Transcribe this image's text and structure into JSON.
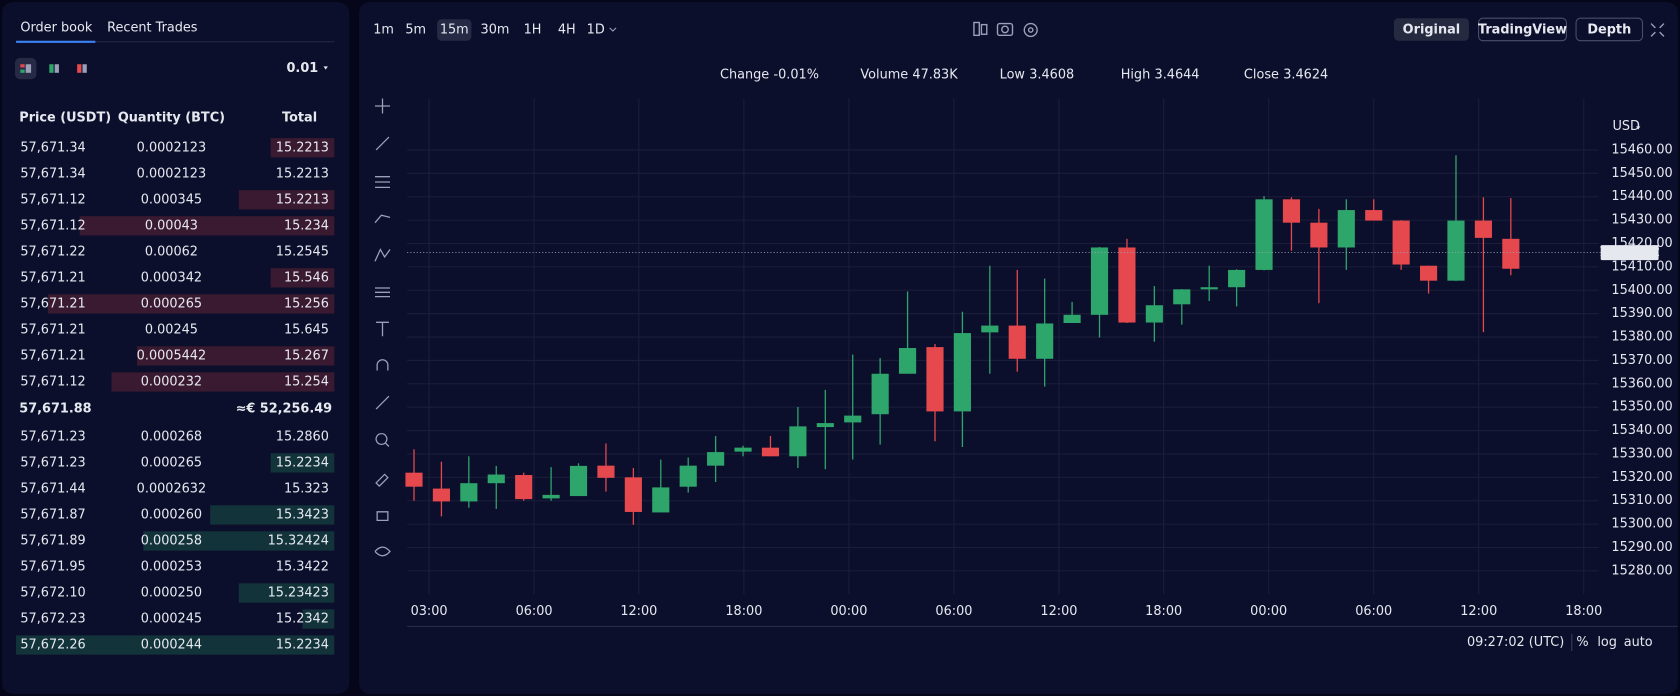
{
  "order_book": {
    "tabs": [
      "Order book",
      "Recent Trades"
    ],
    "size": "0.01",
    "headers": [
      "Price (USDT)",
      "Quantity (BTC)",
      "Total"
    ],
    "asks": [
      {
        "price": "57,671.34",
        "quantity": "0.0002123",
        "total": "15.2213",
        "depth": 20
      },
      {
        "price": "57,671.34",
        "quantity": "0.0002123",
        "total": "15.2213",
        "depth": 0
      },
      {
        "price": "57,671.12",
        "quantity": "0.000345",
        "total": "15.2213",
        "depth": 30
      },
      {
        "price": "57,671.12",
        "quantity": "0.00043",
        "total": "15.234",
        "depth": 80
      },
      {
        "price": "57,671.22",
        "quantity": "0.00062",
        "total": "15.2545",
        "depth": 0
      },
      {
        "price": "57,671.21",
        "quantity": "0.000342",
        "total": "15.546",
        "depth": 20
      },
      {
        "price": "57,671.21",
        "quantity": "0.000265",
        "total": "15.256",
        "depth": 90
      },
      {
        "price": "57,671.21",
        "quantity": "0.00245",
        "total": "15.645",
        "depth": 0
      },
      {
        "price": "57,671.21",
        "quantity": "0.0005442",
        "total": "15.267",
        "depth": 62
      },
      {
        "price": "57,671.12",
        "quantity": "0.000232",
        "total": "15.254",
        "depth": 70
      }
    ],
    "mid_price": "57,671.88",
    "mid_value": "≈€ 52,256.49",
    "bids": [
      {
        "price": "57,671.23",
        "quantity": "0.000268",
        "total": "15.2860",
        "depth": 0
      },
      {
        "price": "57,671.23",
        "quantity": "0.000265",
        "total": "15.2234",
        "depth": 20
      },
      {
        "price": "57,671.44",
        "quantity": "0.0002632",
        "total": "15.323",
        "depth": 0
      },
      {
        "price": "57,671.87",
        "quantity": "0.000260",
        "total": "15.3423",
        "depth": 39
      },
      {
        "price": "57,671.89",
        "quantity": "0.000258",
        "total": "15.32424",
        "depth": 60
      },
      {
        "price": "57,671.95",
        "quantity": "0.000253",
        "total": "15.3422",
        "depth": 0
      },
      {
        "price": "57,672.10",
        "quantity": "0.000250",
        "total": "15.23423",
        "depth": 30
      },
      {
        "price": "57,672.23",
        "quantity": "0.000245",
        "total": "15.2342",
        "depth": 10
      },
      {
        "price": "57,672.26",
        "quantity": "0.000244",
        "total": "15.2234",
        "depth": 100
      }
    ]
  },
  "toolbar": {
    "timeframes": [
      "1m",
      "5m",
      "15m",
      "30m",
      "1H",
      "4H",
      "1D"
    ],
    "active_timeframe": 2,
    "views": [
      "Original",
      "TradingView",
      "Depth"
    ],
    "active_view": 0
  },
  "stats": [
    {
      "label": "Change",
      "value": "-0.01%"
    },
    {
      "label": "Volume",
      "value": "47.83K"
    },
    {
      "label": "Low",
      "value": "3.4608"
    },
    {
      "label": "High",
      "value": "3.4644"
    },
    {
      "label": "Close",
      "value": "3.4624"
    }
  ],
  "chart_data": {
    "type": "candlestick",
    "currency": "USD",
    "up_color": "#2ea66b",
    "down_color": "#e5484d",
    "open": [
      15322,
      15315.2,
      15309.7,
      15317.5,
      15321,
      15311,
      15312,
      15325,
      15320,
      15305,
      15316,
      15325,
      15331,
      15332.7,
      15329,
      15341.5,
      15343.5,
      15347,
      15364.3,
      15375.7,
      15348.2,
      15382,
      15384.9,
      15370.7,
      15386,
      15389.5,
      15418.3,
      15386.2,
      15394,
      15400.4,
      15401.3,
      15408.7,
      15438.9,
      15428.9,
      15418.3,
      15434.3,
      15429.8,
      15410.5,
      15404.1,
      15429.8,
      15422
    ],
    "high": [
      15332,
      15326.7,
      15329,
      15324.9,
      15322,
      15324.4,
      15326,
      15334.5,
      15324,
      15327.6,
      15328.5,
      15337.7,
      15333.5,
      15337.7,
      15350.1,
      15357.4,
      15372.5,
      15371,
      15399.5,
      15377,
      15390.8,
      15410.5,
      15408.7,
      15405,
      15395,
      15418.5,
      15422,
      15401.8,
      15400.5,
      15410.5,
      15409,
      15440.3,
      15439.8,
      15434.8,
      15438.9,
      15438.9,
      15430,
      15410.5,
      15457.7,
      15439.8,
      15439.4
    ],
    "low": [
      15310,
      15303.3,
      15307,
      15306.5,
      15310,
      15310,
      15312,
      15313.9,
      15299.7,
      15305,
      15313.5,
      15318,
      15329,
      15329,
      15324,
      15323.5,
      15327.6,
      15334,
      15364.7,
      15335.4,
      15333,
      15364.3,
      15365.2,
      15358.8,
      15386,
      15379.8,
      15386,
      15378,
      15385.3,
      15395.4,
      15393.1,
      15408.5,
      15416.9,
      15394.5,
      15408.7,
      15429.8,
      15408.7,
      15398.6,
      15404,
      15382.1,
      15406.4
    ],
    "close": [
      15316,
      15309.7,
      15317.5,
      15321.2,
      15310.7,
      15312.5,
      15324.9,
      15319.8,
      15305.2,
      15315.7,
      15325,
      15330.8,
      15332.7,
      15329,
      15341.8,
      15343.2,
      15346.4,
      15364.3,
      15375.3,
      15348.2,
      15381.7,
      15384.9,
      15370.7,
      15385.8,
      15389.5,
      15418.3,
      15386.2,
      15393.6,
      15400.4,
      15401.3,
      15408.7,
      15438.9,
      15428.9,
      15418.3,
      15434.3,
      15429.8,
      15411,
      15404.1,
      15429.8,
      15422.4,
      15409.2
    ],
    "xlim": [
      -0.25,
      43.2
    ],
    "xticks": [
      {
        "value": 0.55,
        "label": "03:00"
      },
      {
        "value": 4.38,
        "label": "06:00"
      },
      {
        "value": 8.2,
        "label": "12:00"
      },
      {
        "value": 12.03,
        "label": "18:00"
      },
      {
        "value": 15.86,
        "label": "00:00"
      },
      {
        "value": 19.69,
        "label": "06:00"
      },
      {
        "value": 23.52,
        "label": "12:00"
      },
      {
        "value": 27.34,
        "label": "18:00"
      },
      {
        "value": 31.17,
        "label": "00:00"
      },
      {
        "value": 35.0,
        "label": "06:00"
      },
      {
        "value": 38.83,
        "label": "12:00"
      },
      {
        "value": 42.66,
        "label": "18:00"
      }
    ],
    "ylim": [
      15270,
      15482
    ],
    "yticks": [
      {
        "value": 15280,
        "label": "15280.00"
      },
      {
        "value": 15290,
        "label": "15290.00"
      },
      {
        "value": 15300,
        "label": "15300.00"
      },
      {
        "value": 15310,
        "label": "15310.00"
      },
      {
        "value": 15320,
        "label": "15320.00"
      },
      {
        "value": 15330,
        "label": "15330.00"
      },
      {
        "value": 15340,
        "label": "15340.00"
      },
      {
        "value": 15350,
        "label": "15350.00"
      },
      {
        "value": 15360,
        "label": "15360.00"
      },
      {
        "value": 15370,
        "label": "15370.00"
      },
      {
        "value": 15380,
        "label": "15380.00"
      },
      {
        "value": 15390,
        "label": "15390.00"
      },
      {
        "value": 15400,
        "label": "15400.00"
      },
      {
        "value": 15410,
        "label": "15410.00"
      },
      {
        "value": 15420,
        "label": "15420.00"
      },
      {
        "value": 15430,
        "label": "15430.00"
      },
      {
        "value": 15440,
        "label": "15440.00"
      },
      {
        "value": 15450,
        "label": "15450.00"
      },
      {
        "value": 15460,
        "label": "15460.00"
      }
    ],
    "grid": true,
    "last_price": 15416.12
  },
  "footer": {
    "time": "09:27:02 (UTC)",
    "options": [
      "%",
      "log",
      "auto"
    ],
    "active_option": 2
  }
}
